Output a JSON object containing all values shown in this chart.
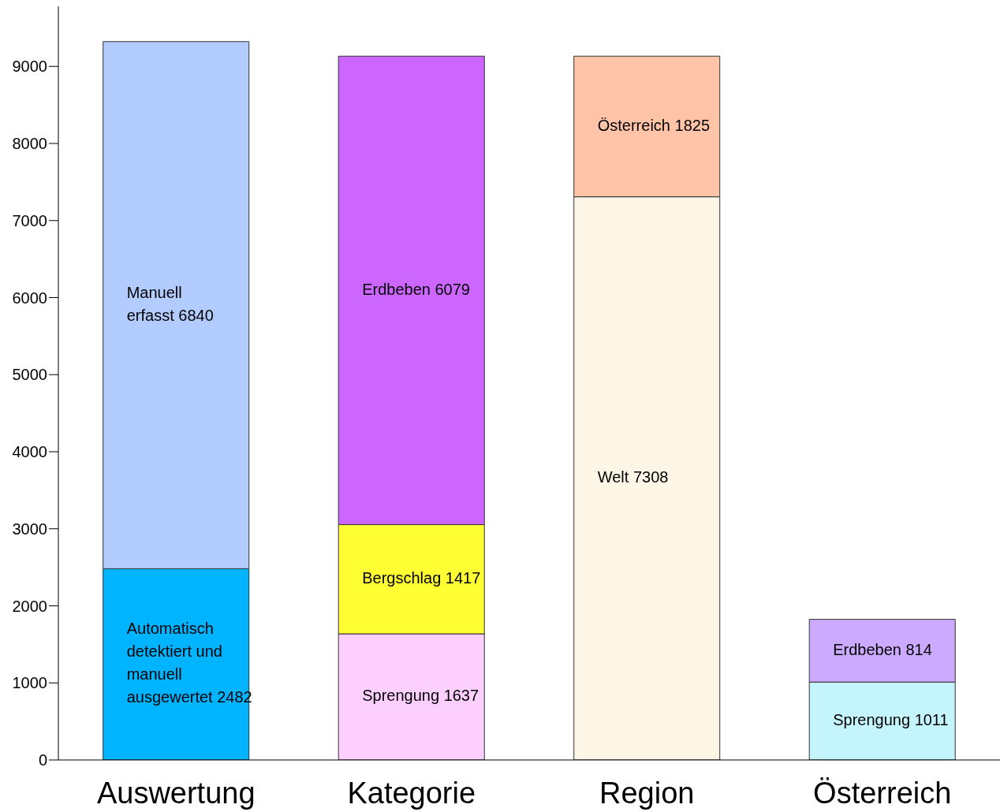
{
  "chart_data": {
    "type": "bar",
    "stacked": true,
    "data_labels": true,
    "categories": [
      "Auswertung",
      "Kategorie",
      "Region",
      "Österreich"
    ],
    "series": [
      {
        "name": "Automatisch detektiert und manuell ausgewertet",
        "color": "#00b4ff",
        "values": [
          2482,
          null,
          null,
          null
        ]
      },
      {
        "name": "Manuell erfasst",
        "color": "#b3ccff",
        "values": [
          6840,
          null,
          null,
          null
        ]
      },
      {
        "name": "Sprengung",
        "color": "#fccfff",
        "values": [
          null,
          1637,
          null,
          null
        ]
      },
      {
        "name": "Bergschlag",
        "color": "#ffff33",
        "values": [
          null,
          1417,
          null,
          null
        ]
      },
      {
        "name": "Erdbeben",
        "color": "#cc66ff",
        "values": [
          null,
          6079,
          null,
          null
        ]
      },
      {
        "name": "Welt",
        "color": "#fdf5e6",
        "values": [
          null,
          null,
          7308,
          null
        ]
      },
      {
        "name": "Österreich",
        "color": "#ffc4a8",
        "values": [
          null,
          null,
          1825,
          null
        ]
      },
      {
        "name": "Sprengung",
        "color": "#c4f4fc",
        "values": [
          null,
          null,
          null,
          1011
        ]
      },
      {
        "name": "Erdbeben",
        "color": "#ccaaff",
        "values": [
          null,
          null,
          null,
          814
        ]
      }
    ],
    "ylim": [
      0,
      9780
    ],
    "yticks": [
      0,
      1000,
      2000,
      3000,
      4000,
      5000,
      6000,
      7000,
      8000,
      9000
    ],
    "grid": false,
    "legend": false
  }
}
